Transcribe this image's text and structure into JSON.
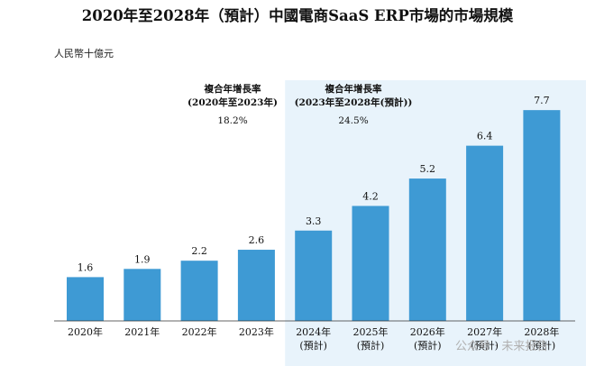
{
  "chart_data": {
    "type": "bar",
    "title": "2020年至2028年（預計）中國電商SaaS ERP市場的市場規模",
    "unit_label": "人民幣十億元",
    "categories": [
      "2020年",
      "2021年",
      "2022年",
      "2023年",
      "2024年",
      "2025年",
      "2026年",
      "2027年",
      "2028年"
    ],
    "category_sublabels": [
      "",
      "",
      "",
      "",
      "(預計)",
      "(預計)",
      "(預計)",
      "(預計)",
      "(預計)"
    ],
    "values": [
      1.6,
      1.9,
      2.2,
      2.6,
      3.3,
      4.2,
      5.2,
      6.4,
      7.7
    ],
    "value_labels": [
      "1.6",
      "1.9",
      "2.2",
      "2.6",
      "3.3",
      "4.2",
      "5.2",
      "6.4",
      "7.7"
    ],
    "ylim": [
      0,
      8.1
    ],
    "grid": false,
    "bar_color": "#3e9ad4",
    "forecast_bg_color": "#e8f3fb",
    "forecast_start_index": 4,
    "annotations": [
      {
        "title": "複合年增長率",
        "range": "(2020年至2023年)",
        "value": "18.2%"
      },
      {
        "title": "複合年增長率",
        "range": "(2023年至2028年(預計))",
        "value": "24.5%"
      }
    ],
    "watermark": "公众号 · 未来报告"
  }
}
